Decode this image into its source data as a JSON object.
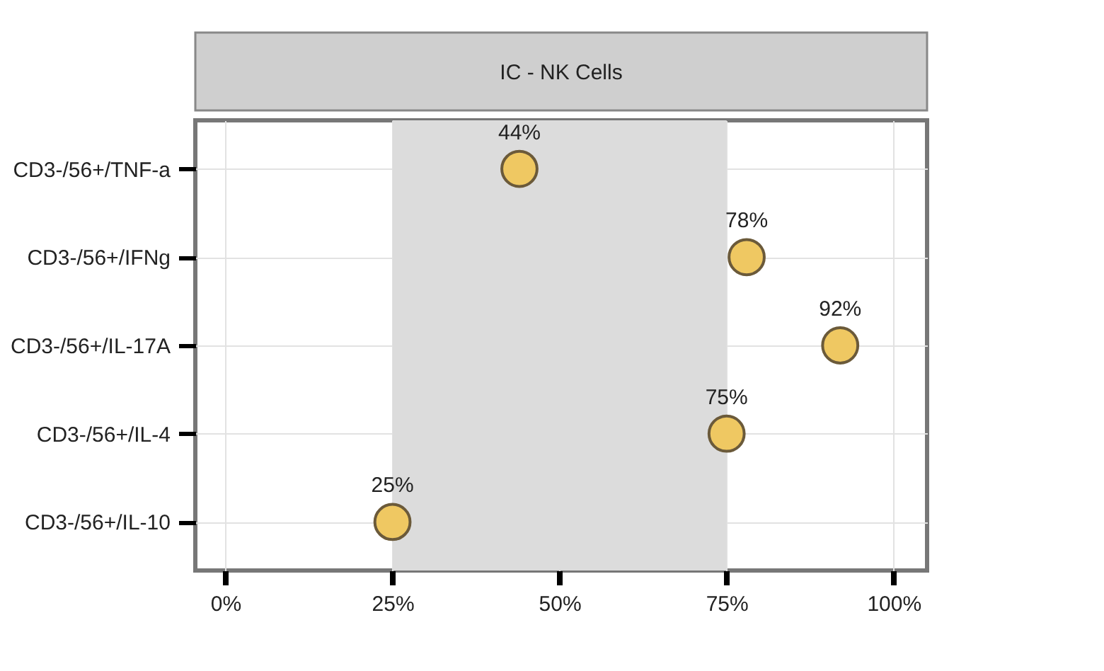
{
  "chart_data": {
    "type": "scatter",
    "title": "IC - NK Cells",
    "categories": [
      "CD3-/56+/TNF-a",
      "CD3-/56+/IFNg",
      "CD3-/56+/IL-17A",
      "CD3-/56+/IL-4",
      "CD3-/56+/IL-10"
    ],
    "orientation": "horizontal",
    "series": [
      {
        "color": "#efc862",
        "values": [
          44,
          78,
          92,
          75,
          25
        ],
        "value_labels": [
          "44%",
          "78%",
          "92%",
          "75%",
          "25%"
        ]
      }
    ],
    "xlim": [
      -4.5,
      105
    ],
    "xticks": [
      {
        "value": 0,
        "label": "0%"
      },
      {
        "value": 25,
        "label": "25%"
      },
      {
        "value": 50,
        "label": "50%"
      },
      {
        "value": 75,
        "label": "75%"
      },
      {
        "value": 100,
        "label": "100%"
      }
    ],
    "bands": [
      {
        "axis": "x",
        "from": 25,
        "to": 75,
        "color": "#dcdcdc"
      }
    ],
    "grid": true,
    "marker": "circle"
  }
}
